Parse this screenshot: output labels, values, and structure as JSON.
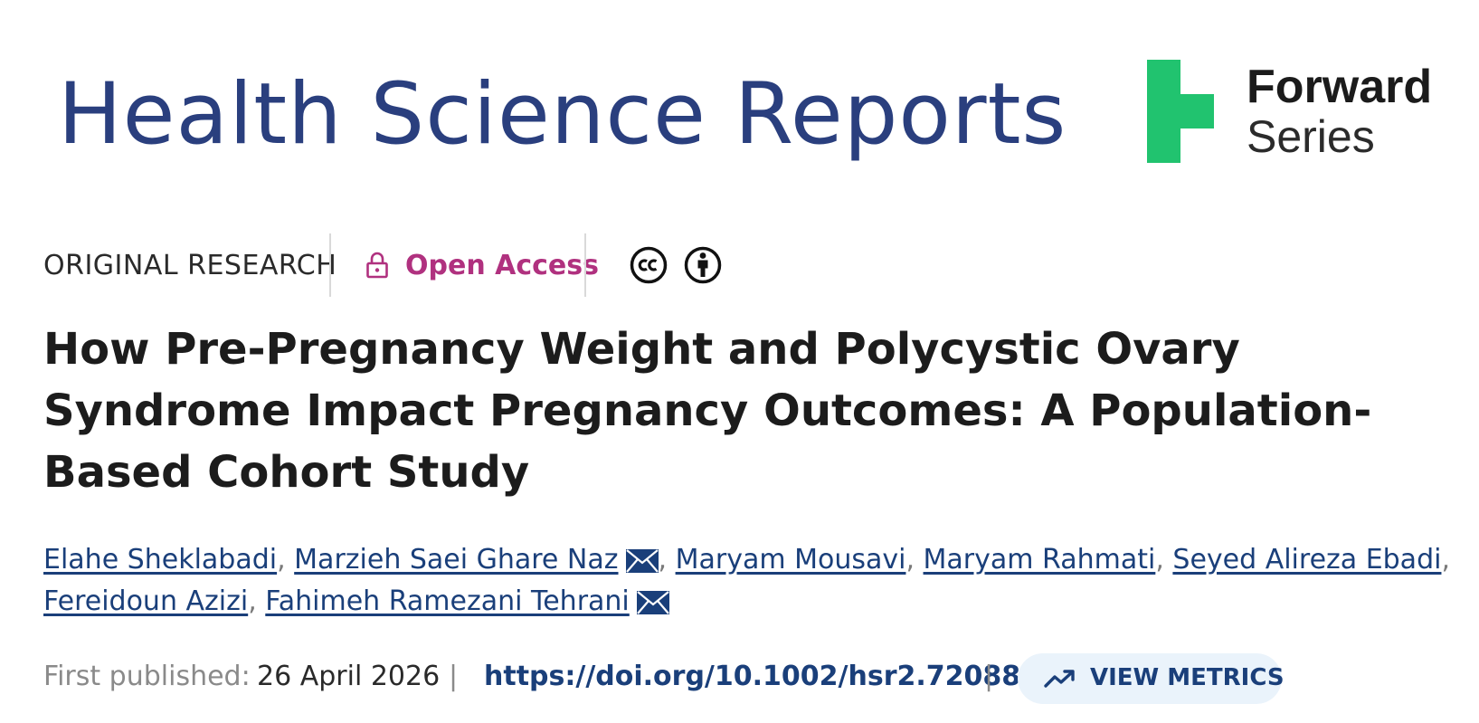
{
  "banner": {
    "journal_title": "Health Science Reports",
    "series_word1": "Forward",
    "series_word2": "Series",
    "colors": {
      "journal_blue": "#2a3f7e",
      "forward_green": "#21c36f"
    }
  },
  "meta": {
    "article_type": "ORIGINAL RESEARCH",
    "access_label": "Open Access",
    "access_icon": "lock-icon",
    "license_icons": [
      "cc-icon",
      "by-attribution-icon"
    ],
    "colors": {
      "access": "#b0317f"
    }
  },
  "title": "How Pre-Pregnancy Weight and Polycystic Ovary Syndrome Impact Pregnancy Outcomes: A Population-Based Cohort Study",
  "authors": [
    {
      "name": "Elahe Sheklabadi",
      "corresponding": false
    },
    {
      "name": "Marzieh Saei Ghare Naz",
      "corresponding": true
    },
    {
      "name": "Maryam Mousavi",
      "corresponding": false
    },
    {
      "name": "Maryam Rahmati",
      "corresponding": false
    },
    {
      "name": "Seyed Alireza Ebadi",
      "corresponding": false
    },
    {
      "name": "Fereidoun Azizi",
      "corresponding": false
    },
    {
      "name": "Fahimeh Ramezani Tehrani",
      "corresponding": true
    }
  ],
  "publication": {
    "first_published_label": "First published:",
    "date": "26 April 2026",
    "separator": "|",
    "doi": "https://doi.org/10.1002/hsr2.72088",
    "metrics_label": "VIEW METRICS",
    "metrics_icon": "trending-up-icon"
  }
}
